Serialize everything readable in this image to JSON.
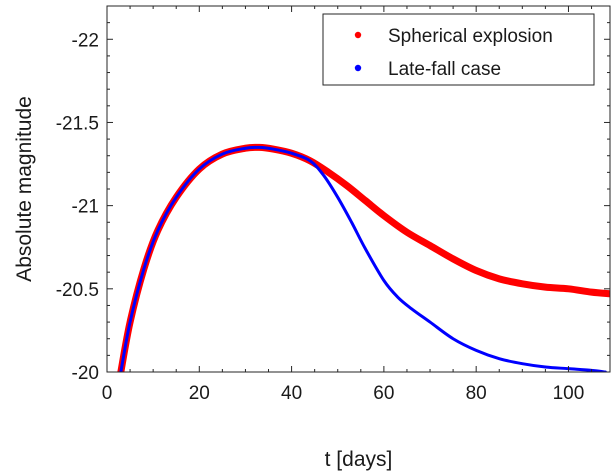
{
  "chart_data": {
    "type": "line",
    "title": "",
    "xlabel": "t [days]",
    "ylabel": "Absolute magnitude",
    "xlim": [
      0,
      109
    ],
    "ylim": [
      -20,
      -22.2
    ],
    "y_reversed": true,
    "grid": false,
    "legend_position": "top-right",
    "x_ticks": [
      0,
      20,
      40,
      60,
      80,
      100
    ],
    "x_tick_labels": [
      "0",
      "20",
      "40",
      "60",
      "80",
      "100"
    ],
    "y_ticks": [
      -20,
      -20.5,
      -21,
      -21.5,
      -22
    ],
    "y_tick_labels": [
      "-20",
      "-20.5",
      "-21",
      "-21.5",
      "-22"
    ],
    "series": [
      {
        "name": "Spherical explosion",
        "color": "#ff0000",
        "marker": "dot",
        "x": [
          3,
          5,
          8,
          11,
          15,
          20,
          25,
          30,
          33,
          36,
          40,
          44,
          48,
          52,
          56,
          60,
          65,
          70,
          75,
          80,
          85,
          90,
          95,
          100,
          105,
          109
        ],
        "y": [
          -20.0,
          -20.3,
          -20.62,
          -20.85,
          -21.05,
          -21.22,
          -21.31,
          -21.345,
          -21.35,
          -21.34,
          -21.315,
          -21.27,
          -21.2,
          -21.12,
          -21.03,
          -20.94,
          -20.84,
          -20.76,
          -20.68,
          -20.61,
          -20.56,
          -20.53,
          -20.51,
          -20.5,
          -20.48,
          -20.47
        ]
      },
      {
        "name": "Late-fall case",
        "color": "#0000ff",
        "marker": "dot",
        "x": [
          3,
          5,
          8,
          11,
          15,
          20,
          25,
          30,
          33,
          36,
          40,
          44,
          47,
          50,
          53,
          56,
          60,
          63,
          66,
          70,
          75,
          80,
          85,
          90,
          95,
          100,
          105,
          108
        ],
        "y": [
          -20.0,
          -20.3,
          -20.62,
          -20.85,
          -21.05,
          -21.22,
          -21.31,
          -21.345,
          -21.35,
          -21.34,
          -21.315,
          -21.27,
          -21.18,
          -21.05,
          -20.9,
          -20.74,
          -20.55,
          -20.45,
          -20.38,
          -20.3,
          -20.2,
          -20.13,
          -20.08,
          -20.05,
          -20.03,
          -20.02,
          -20.01,
          -20.0
        ]
      }
    ]
  }
}
